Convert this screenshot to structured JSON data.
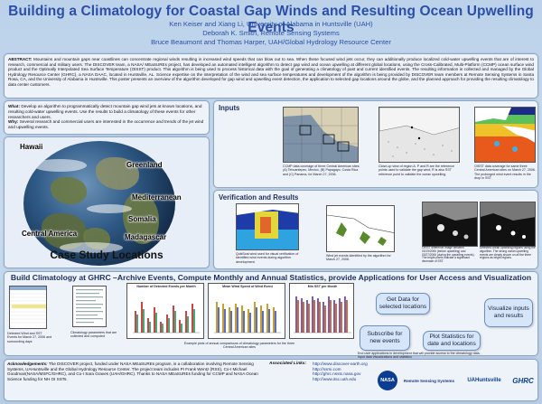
{
  "poster": {
    "title": "Building a Climatology for Coastal Gap Winds and Resulting Ocean Upwelling Events",
    "authors": [
      "Ken Keiser and Xiang Li, University of Alabama in Huntsville (UAH)",
      "Deborah K. Smith, Remote Sensing Systems",
      "Bruce Beaumont and Thomas Harper, UAH/Global Hydrology Resource Center"
    ]
  },
  "abstract": {
    "label": "ABSTRACT:",
    "text": "Mountains and mountain gaps near coastlines can concentrate regional winds resulting in increased wind speeds that can blow out to sea. When these focused wind jets occur, they can additionally produce localized cold-water upwelling events that are of interest to research, commercial and military users. The DISCOVER team, a NASA/ MEaSUREs project, has developed an automated intelligent algorithm to detect gap wind and ocean upwelling at different global locations, using the Cross-Calibrated, Multi-Platform (CCMP) ocean surface wind product and the Optimally Interpolated Sea Surface Temperature (OISST) product. This algorithm is being used to process historical data with the goal of generating a climatology of past and current identified events. The resulting information is collected and managed by the Global Hydrology Resource Center (GHRC), a NASA DAAC, located in Huntsville, AL. Science expertise on the interpretation of the wind and sea surface temperatures and development of the algorithm is being provided by DISCOVER team members at Remote Sensing Systems in Santa Rosa, CA, and the University of Alabama in Huntsville. This poster presents an overview of the algorithm developed for gap wind and upwelling event detection, the application to selected gap locations around the globe, and the planned approach for providing the resulting climatology to data center customers."
  },
  "what_why": {
    "what_label": "What:",
    "what_text": "Develop an algorithm to programmatically detect mountain gap wind jets at known locations, and resulting cold-water upwelling events. Use the results to build a climatology of these events for other researchers and users.",
    "why_label": "Why:",
    "why_text": "Several research and commercial users are interested in the occurrence and trends of the jet wind and upwelling events."
  },
  "case_study": {
    "title": "Case Study Locations",
    "locations": [
      "Hawaii",
      "Greenland",
      "Mediterranean",
      "Somalia",
      "Central America",
      "Madagascar"
    ]
  },
  "inputs": {
    "title": "Inputs",
    "captions": [
      "CCMP data coverage of three Central American sites: (A) Tehuantepec, Mexico, (B) Papagayo, Costa Rica and (C) Panama, for March 27, 2006.",
      "Close-up view of region A. P and R are the reference points used to validate the gap wind; R is also SST reference point to validate the ocean upwelling.",
      "OISST data coverage for same three Central American sites on March 27, 2006. The prolonged wind event results in the drop in SST."
    ]
  },
  "verification": {
    "title": "Verification and Results",
    "captions": [
      "QuikScat wind used for visual verification of identified wind events during algorithm development.",
      "Wind jet events identified by the algorithm for March 27, 2006.",
      "OISST difference image between 03/19/2006 (before upwelling) and 03/27/2006 (during the upwelling events). The bright pixels indicate a significant decrease of SST.",
      "Detected ocean upwelling regions using the algorithm. The strong ocean upwelling events are clearly shown on all the three regions as bright regions."
    ]
  },
  "build": {
    "title": "Build Climatology at GHRC –Archive Events, Compute Monthly and Annual Statistics, provide Applications for User Access and Visualization",
    "captions": [
      "Detected Wind and SST Events for March 27, 2006 and surrounding days",
      "Climatology parameters that are collected and computed",
      "Example plots of annual comparisons of climatology parameters for the three Central American sites",
      "End user applications in development that will provide access to the climatology data, input data visualizations and statistics"
    ],
    "chart_titles": [
      "Number of Detected Events per Month",
      "Mean Wind Speed of Wind Event",
      "Min SST per Month"
    ],
    "actions": {
      "get_data": "Get Data for selected locations",
      "visualize": "Visualize inputs and results",
      "subscribe": "Subscribe for new events",
      "plot_stats": "Plot Statistics for date and locations"
    }
  },
  "footer": {
    "ack_label": "Acknowledgements:",
    "ack_text": "The DISCOVER project, funded under NASA MEaSUREs program, is a collaboration involving Remote Sensing Systems, UAHuntsville and the Global Hydrology Resource Center. The project team includes PI Frank Wentz (RSS), Co-I Michael Goodman(NASA/MSFC/GHRC), and Co-I Sara Graves (UAH/GHRC). Thanks to NASA MEaSUREs funding for CCMP and NASA Ocean Science funding for NH OI SSTs.",
    "links_label": "Associated Links:",
    "links": [
      "http://www.discover-earth.org",
      "http://ssmi.com",
      "http://ghrc.nsstc.nasa.gov",
      "http://www.itsc.uah.edu"
    ],
    "logos": [
      "NASA",
      "Remote Sensing Systems",
      "UAHuntsville",
      "GHRC"
    ]
  }
}
